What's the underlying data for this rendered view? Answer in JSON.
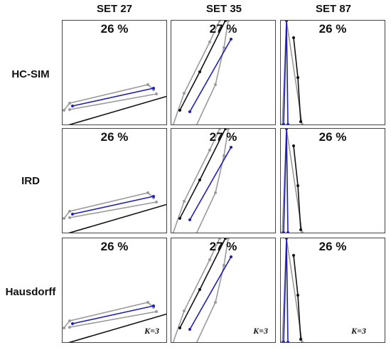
{
  "columns": [
    "SET 27",
    "SET 35",
    "SET 87"
  ],
  "rows": [
    {
      "label": "HC-SIM",
      "percents": [
        "26 %",
        "27 %",
        "26 %"
      ],
      "k": [
        "",
        "",
        ""
      ]
    },
    {
      "label": "IRD",
      "percents": [
        "26 %",
        "27 %",
        "26 %"
      ],
      "k": [
        "",
        "",
        ""
      ]
    },
    {
      "label": "Hausdorff",
      "percents": [
        "26 %",
        "27 %",
        "26 %"
      ],
      "k": [
        "K=3",
        "K=3",
        "K=3"
      ]
    }
  ],
  "colors": {
    "black": "#111111",
    "gray": "#9a9a9a",
    "blue": "#1f1fb4"
  }
}
